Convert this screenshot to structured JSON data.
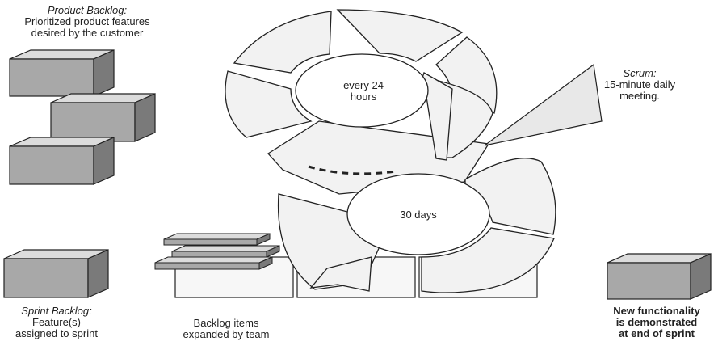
{
  "product_backlog": {
    "title": "Product Backlog:",
    "line1": "Prioritized product features",
    "line2": "desired by the customer"
  },
  "sprint_backlog": {
    "title": "Sprint Backlog:",
    "line1": "Feature(s)",
    "line2": "assigned to sprint"
  },
  "backlog_items": {
    "line1": "Backlog items",
    "line2": "expanded by team"
  },
  "scrum": {
    "title": "Scrum:",
    "line1": "15-minute daily",
    "line2": "meeting."
  },
  "daily_cycle": {
    "line1": "every 24",
    "line2": "hours"
  },
  "sprint_cycle": {
    "label": "30 days"
  },
  "new_functionality": {
    "line1": "New functionality",
    "line2": "is demonstrated",
    "line3": "at end of sprint"
  },
  "colors": {
    "block_front": "#a8a8a8",
    "block_top": "#dcdcdc",
    "block_side": "#7a7a7a",
    "ring_fill": "#f2f2f2",
    "stroke": "#222222"
  }
}
